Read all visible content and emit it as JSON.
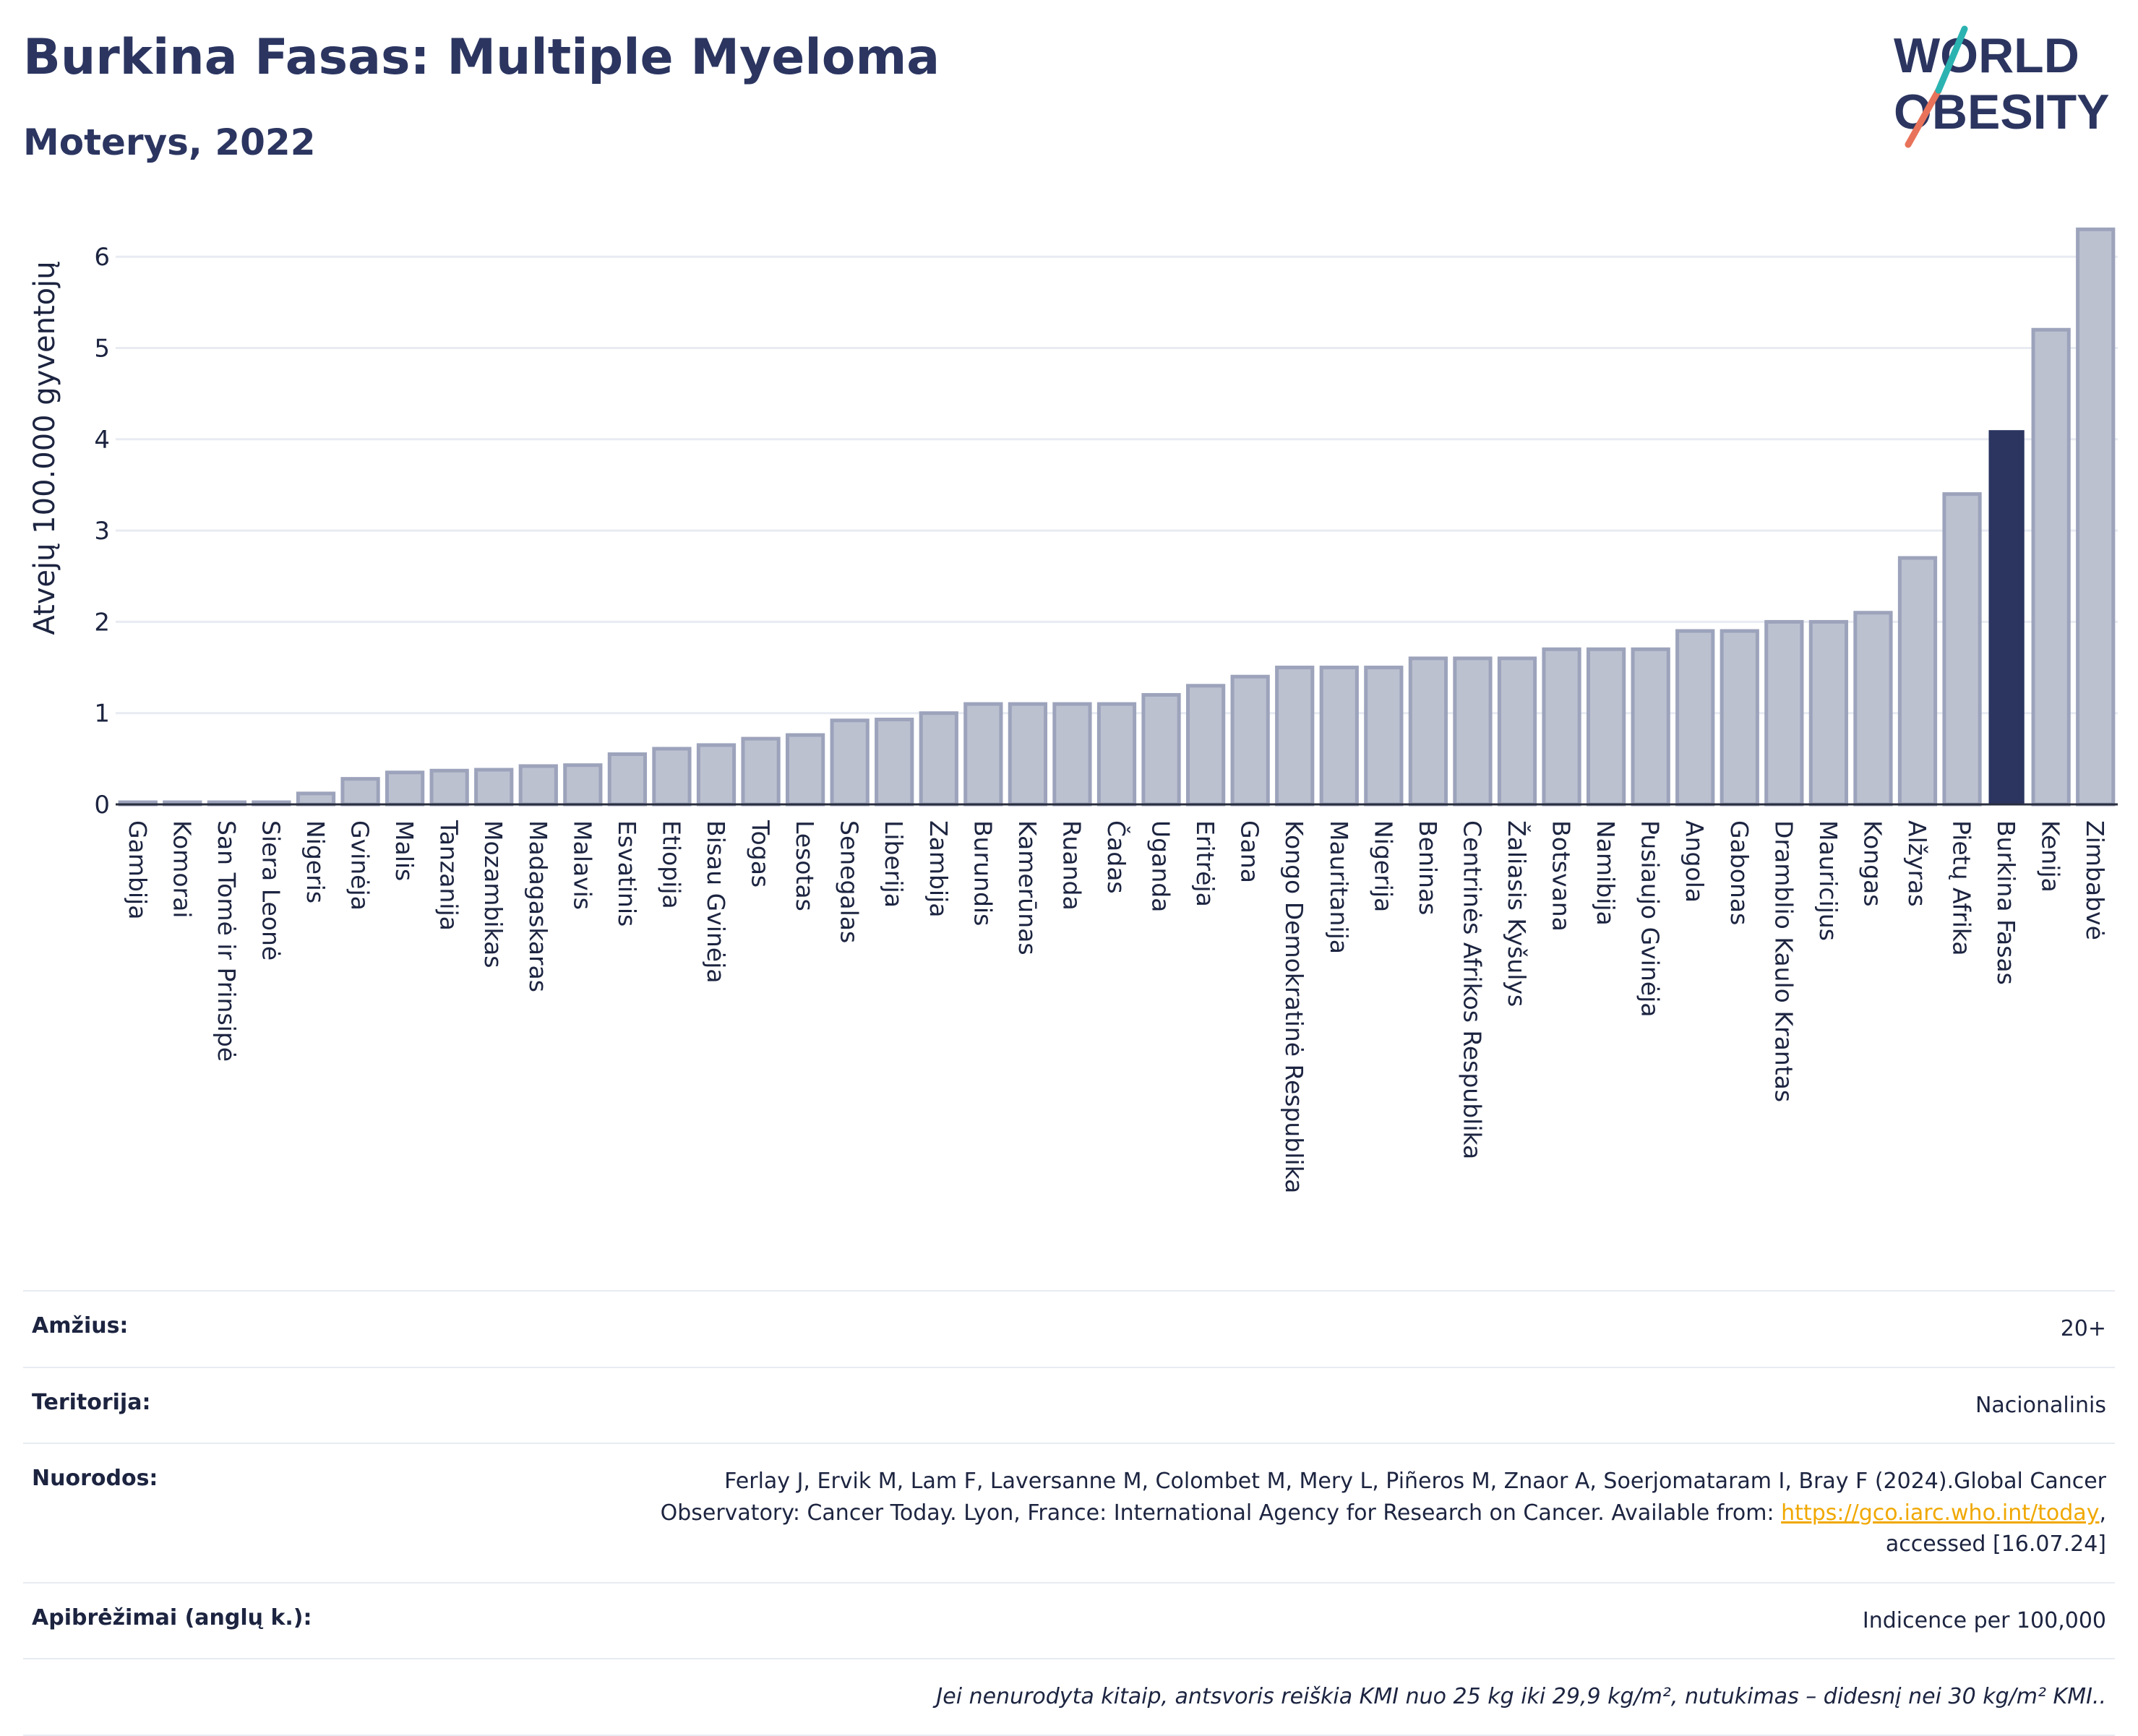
{
  "header": {
    "title": "Burkina Fasas: Multiple Myeloma",
    "subtitle": "Moterys, 2022"
  },
  "logo": {
    "line1": "WORLD",
    "line2": "OBESITY"
  },
  "colors": {
    "bar": "#bcc1d0",
    "bar_edge": "#9ca3bb",
    "highlight": "#2b3560",
    "grid": "#e8ebf2",
    "text": "#1c2440"
  },
  "chart_data": {
    "type": "bar",
    "title": "Burkina Fasas: Multiple Myeloma",
    "ylabel": "Atvejų 100.000 gyventojų",
    "ylim": [
      0,
      6.5
    ],
    "yticks": [
      0,
      1,
      2,
      3,
      4,
      5,
      6
    ],
    "grid": true,
    "highlight": "Burkina Fasas",
    "categories": [
      "Gambija",
      "Komorai",
      "San Tomė ir Prinsipė",
      "Siera Leonė",
      "Nigeris",
      "Gvinėja",
      "Malis",
      "Tanzanija",
      "Mozambikas",
      "Madagaskaras",
      "Malavis",
      "Esvatinis",
      "Etiopija",
      "Bisau Gvinėja",
      "Togas",
      "Lesotas",
      "Senegalas",
      "Liberija",
      "Zambija",
      "Burundis",
      "Kamerūnas",
      "Ruanda",
      "Čadas",
      "Uganda",
      "Eritrėja",
      "Gana",
      "Kongo Demokratinė Respublika",
      "Mauritanija",
      "Nigerija",
      "Beninas",
      "Centrinės Afrikos Respublika",
      "Žaliasis Kyšulys",
      "Botsvana",
      "Namibija",
      "Pusiaujo Gvinėja",
      "Angola",
      "Gabonas",
      "Dramblio Kaulo Krantas",
      "Mauricijus",
      "Kongas",
      "Alžyras",
      "Pietų Afrika",
      "Burkina Fasas",
      "Kenija",
      "Zimbabvė"
    ],
    "values": [
      0.01,
      0.01,
      0.01,
      0.01,
      0.12,
      0.28,
      0.35,
      0.37,
      0.38,
      0.42,
      0.43,
      0.55,
      0.61,
      0.65,
      0.72,
      0.76,
      0.92,
      0.93,
      1.0,
      1.1,
      1.1,
      1.1,
      1.1,
      1.2,
      1.3,
      1.4,
      1.5,
      1.5,
      1.5,
      1.6,
      1.6,
      1.6,
      1.7,
      1.7,
      1.7,
      1.9,
      1.9,
      2.0,
      2.0,
      2.1,
      2.7,
      3.4,
      4.1,
      5.2,
      6.3
    ]
  },
  "meta": {
    "age_label": "Amžius:",
    "age_value": "20+",
    "territory_label": "Teritorija:",
    "territory_value": "Nacionalinis",
    "refs_label": "Nuorodos:",
    "refs_line1": "Ferlay J, Ervik M, Lam F, Laversanne M, Colombet M, Mery L, Piñeros M, Znaor A, Soerjomataram I, Bray F (2024).Global Cancer",
    "refs_line2": "Observatory: Cancer Today. Lyon, France: International Agency for Research on Cancer. Available from:",
    "refs_link": "https://gco.iarc.who.int/today",
    "refs_line3": "accessed [16.07.24]",
    "definitions_label": "Apibrėžimai (anglų k.):",
    "definitions_value": "Indicence per 100,000",
    "note": "Jei nenurodyta kitaip, antsvoris reiškia KMI nuo 25 kg iki 29,9 kg/m², nutukimas – didesnį nei 30 kg/m² KMI.."
  }
}
